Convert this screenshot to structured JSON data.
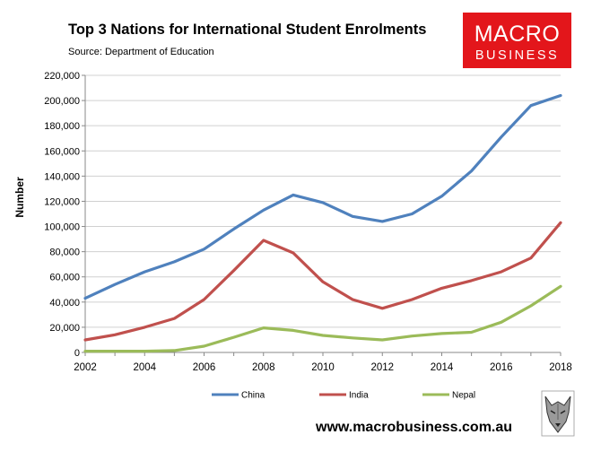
{
  "chart_data": {
    "type": "line",
    "title": "Top 3 Nations for International Student Enrolments",
    "subtitle": "Source: Department of Education",
    "ylabel": "Number",
    "xlabel": "",
    "ylim": [
      0,
      220000
    ],
    "xlim": [
      2002,
      2018
    ],
    "y_ticks": [
      0,
      20000,
      40000,
      60000,
      80000,
      100000,
      120000,
      140000,
      160000,
      180000,
      200000,
      220000
    ],
    "y_tick_labels": [
      "0",
      "20,000",
      "40,000",
      "60,000",
      "80,000",
      "100,000",
      "120,000",
      "140,000",
      "160,000",
      "180,000",
      "200,000",
      "220,000"
    ],
    "x_ticks": [
      2002,
      2004,
      2006,
      2008,
      2010,
      2012,
      2014,
      2016,
      2018
    ],
    "x_tick_labels": [
      "2002",
      "2004",
      "2006",
      "2008",
      "2010",
      "2012",
      "2014",
      "2016",
      "2018"
    ],
    "grid": "horizontal",
    "legend_position": "bottom",
    "x": [
      2002,
      2003,
      2004,
      2005,
      2006,
      2007,
      2008,
      2009,
      2010,
      2011,
      2012,
      2013,
      2014,
      2015,
      2016,
      2017,
      2018
    ],
    "series": [
      {
        "name": "China",
        "color": "#4f81bd",
        "values": [
          43000,
          54000,
          64000,
          72000,
          82000,
          98000,
          113000,
          125000,
          119000,
          108000,
          104000,
          110000,
          124000,
          144000,
          171000,
          196000,
          204000
        ]
      },
      {
        "name": "India",
        "color": "#c0504d",
        "values": [
          10000,
          14000,
          20000,
          27000,
          42000,
          65000,
          89000,
          79000,
          56000,
          42000,
          35000,
          42000,
          51000,
          57000,
          64000,
          75000,
          103000
        ]
      },
      {
        "name": "Nepal",
        "color": "#9bbb59",
        "values": [
          1000,
          1000,
          1000,
          1500,
          5000,
          12000,
          19500,
          17500,
          13500,
          11500,
          10000,
          13000,
          15000,
          16000,
          24000,
          37000,
          52500
        ]
      }
    ]
  },
  "branding": {
    "logo_line1": "MACRO",
    "logo_line2": "BUSINESS",
    "logo_color": "#e3161b",
    "website": "www.macrobusiness.com.au",
    "mascot": "wolf-head-icon"
  }
}
